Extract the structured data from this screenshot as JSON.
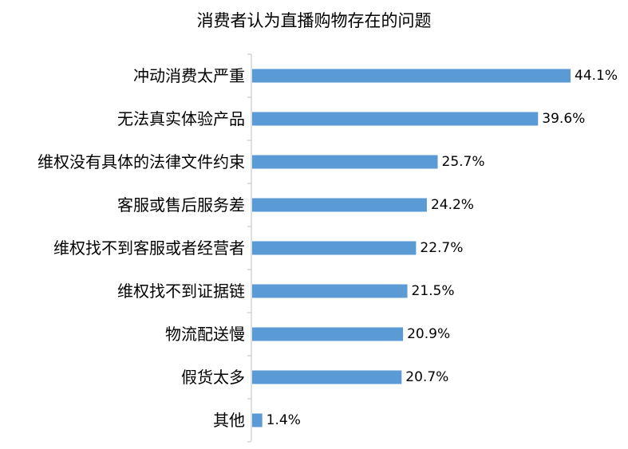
{
  "chart_data": {
    "type": "bar",
    "orientation": "horizontal",
    "title": "消费者认为直播购物存在的问题",
    "xlabel": "",
    "ylabel": "",
    "categories": [
      "冲动消费太严重",
      "无法真实体验产品",
      "维权没有具体的法律文件约束",
      "客服或售后服务差",
      "维权找不到客服或者经营者",
      "维权找不到证据链",
      "物流配送慢",
      "假货太多",
      "其他"
    ],
    "values": [
      44.1,
      39.6,
      25.7,
      24.2,
      22.7,
      21.5,
      20.9,
      20.7,
      1.4
    ],
    "value_labels": [
      "44.1%",
      "39.6%",
      "25.7%",
      "24.2%",
      "22.7%",
      "21.5%",
      "20.9%",
      "20.7%",
      "1.4%"
    ],
    "unit": "%",
    "xlim": [
      0,
      44.1
    ],
    "grid": false,
    "legend": "none",
    "colors": {
      "bar": "#5B9BD5",
      "axis": "#BFBFBF",
      "text": "#000000"
    }
  }
}
